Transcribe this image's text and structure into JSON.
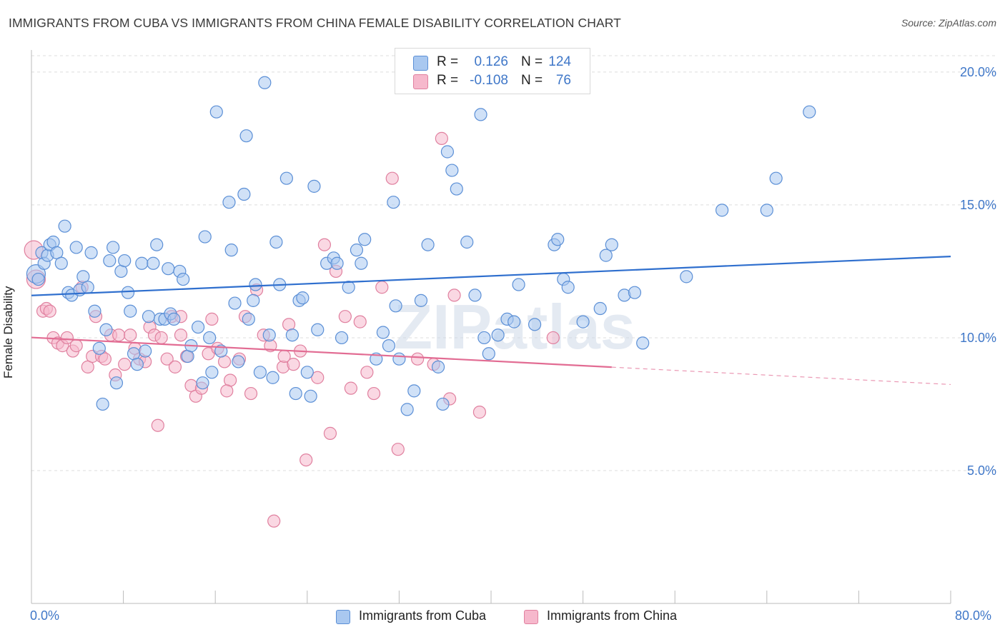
{
  "title": "IMMIGRANTS FROM CUBA VS IMMIGRANTS FROM CHINA FEMALE DISABILITY CORRELATION CHART",
  "source": "Source: ZipAtlas.com",
  "legend_top": {
    "cuba": {
      "r_label": "R =",
      "r_value": "0.126",
      "n_label": "N =",
      "n_value": "124"
    },
    "china": {
      "r_label": "R =",
      "r_value": "-0.108",
      "n_label": "N =",
      "n_value": "76"
    }
  },
  "legend_bottom": {
    "cuba_label": "Immigrants from Cuba",
    "china_label": "Immigrants from China"
  },
  "colors": {
    "cuba_fill": "#a9c8f0",
    "cuba_stroke": "#5b8fd6",
    "cuba_line": "#2f6fce",
    "china_fill": "#f6b8cc",
    "china_stroke": "#e0809f",
    "china_line": "#e26c93",
    "axis_text": "#3f77c8",
    "grid": "#dddddd"
  },
  "chart_data": {
    "type": "scatter",
    "title": "IMMIGRANTS FROM CUBA VS IMMIGRANTS FROM CHINA FEMALE DISABILITY CORRELATION CHART",
    "xlabel": "",
    "ylabel": "Female Disability",
    "xlim": [
      0,
      80
    ],
    "ylim": [
      0,
      20.83
    ],
    "x_tick_labels": [
      "0.0%",
      "80.0%"
    ],
    "y_ticks": [
      5,
      10,
      15,
      20
    ],
    "y_tick_labels": [
      "5.0%",
      "10.0%",
      "15.0%",
      "20.0%"
    ],
    "grid": true,
    "watermark": "ZIPatlas",
    "series": [
      {
        "name": "Immigrants from Cuba",
        "r": 0.126,
        "n": 124,
        "trend": {
          "x0": 0.0,
          "y0": 11.59,
          "x1": 80.0,
          "y1": 13.06,
          "solid_to": 80.0
        },
        "points": [
          [
            0.4,
            12.4
          ],
          [
            0.6,
            12.2
          ],
          [
            0.9,
            13.2
          ],
          [
            1.1,
            12.8
          ],
          [
            1.4,
            13.1
          ],
          [
            1.6,
            13.5
          ],
          [
            1.9,
            13.6
          ],
          [
            2.2,
            13.2
          ],
          [
            2.6,
            12.8
          ],
          [
            2.9,
            14.2
          ],
          [
            3.2,
            11.7
          ],
          [
            3.5,
            11.6
          ],
          [
            3.9,
            13.4
          ],
          [
            4.2,
            11.8
          ],
          [
            4.5,
            12.3
          ],
          [
            4.9,
            11.9
          ],
          [
            5.2,
            13.2
          ],
          [
            5.5,
            11.0
          ],
          [
            5.9,
            9.6
          ],
          [
            6.2,
            7.5
          ],
          [
            6.5,
            10.3
          ],
          [
            6.8,
            12.9
          ],
          [
            7.1,
            13.4
          ],
          [
            7.4,
            8.3
          ],
          [
            7.8,
            12.5
          ],
          [
            8.1,
            12.9
          ],
          [
            8.4,
            11.7
          ],
          [
            8.6,
            11.0
          ],
          [
            8.9,
            9.4
          ],
          [
            9.2,
            9.0
          ],
          [
            9.6,
            12.8
          ],
          [
            9.9,
            9.5
          ],
          [
            10.2,
            10.8
          ],
          [
            10.6,
            12.8
          ],
          [
            10.9,
            13.5
          ],
          [
            11.2,
            10.7
          ],
          [
            11.6,
            10.7
          ],
          [
            11.9,
            12.6
          ],
          [
            12.1,
            10.9
          ],
          [
            12.4,
            10.7
          ],
          [
            12.9,
            12.5
          ],
          [
            13.2,
            12.2
          ],
          [
            13.6,
            9.3
          ],
          [
            13.9,
            9.7
          ],
          [
            14.5,
            10.4
          ],
          [
            14.9,
            8.3
          ],
          [
            15.1,
            13.8
          ],
          [
            15.5,
            10.0
          ],
          [
            15.7,
            8.7
          ],
          [
            16.1,
            18.5
          ],
          [
            16.5,
            9.5
          ],
          [
            17.2,
            15.1
          ],
          [
            17.4,
            13.3
          ],
          [
            17.7,
            11.3
          ],
          [
            18.0,
            9.1
          ],
          [
            18.5,
            15.4
          ],
          [
            18.7,
            17.6
          ],
          [
            18.9,
            10.7
          ],
          [
            19.3,
            11.4
          ],
          [
            19.5,
            12.0
          ],
          [
            19.9,
            8.7
          ],
          [
            20.3,
            19.6
          ],
          [
            20.7,
            10.1
          ],
          [
            21.0,
            8.5
          ],
          [
            21.3,
            13.6
          ],
          [
            21.6,
            12.0
          ],
          [
            22.2,
            16.0
          ],
          [
            22.7,
            10.1
          ],
          [
            23.0,
            7.9
          ],
          [
            23.3,
            11.4
          ],
          [
            23.6,
            11.5
          ],
          [
            24.0,
            8.7
          ],
          [
            24.3,
            7.8
          ],
          [
            24.6,
            15.7
          ],
          [
            24.9,
            10.3
          ],
          [
            25.7,
            12.8
          ],
          [
            26.3,
            13.0
          ],
          [
            26.6,
            12.8
          ],
          [
            27.0,
            10.0
          ],
          [
            27.6,
            11.9
          ],
          [
            28.3,
            13.3
          ],
          [
            28.7,
            12.8
          ],
          [
            29.0,
            13.7
          ],
          [
            30.0,
            9.2
          ],
          [
            30.6,
            10.2
          ],
          [
            31.1,
            9.7
          ],
          [
            31.7,
            11.2
          ],
          [
            31.5,
            15.1
          ],
          [
            32.0,
            9.2
          ],
          [
            32.7,
            7.3
          ],
          [
            33.3,
            8.0
          ],
          [
            33.9,
            11.4
          ],
          [
            34.5,
            13.5
          ],
          [
            35.4,
            8.9
          ],
          [
            35.8,
            7.5
          ],
          [
            36.2,
            17.0
          ],
          [
            36.6,
            16.3
          ],
          [
            37.0,
            15.6
          ],
          [
            37.9,
            13.6
          ],
          [
            38.6,
            11.6
          ],
          [
            39.1,
            18.4
          ],
          [
            39.4,
            10.0
          ],
          [
            39.8,
            9.4
          ],
          [
            40.6,
            10.1
          ],
          [
            41.4,
            10.7
          ],
          [
            42.0,
            10.6
          ],
          [
            42.4,
            12.0
          ],
          [
            43.8,
            10.5
          ],
          [
            45.5,
            13.5
          ],
          [
            45.8,
            13.7
          ],
          [
            46.3,
            12.2
          ],
          [
            46.7,
            11.9
          ],
          [
            48.0,
            10.6
          ],
          [
            49.5,
            11.1
          ],
          [
            50.0,
            13.1
          ],
          [
            50.5,
            13.5
          ],
          [
            51.6,
            11.6
          ],
          [
            52.5,
            11.7
          ],
          [
            53.2,
            9.8
          ],
          [
            57.0,
            12.3
          ],
          [
            60.1,
            14.8
          ],
          [
            64.0,
            14.8
          ],
          [
            64.8,
            16.0
          ],
          [
            67.7,
            18.5
          ]
        ]
      },
      {
        "name": "Immigrants from China",
        "r": -0.108,
        "n": 76,
        "trend": {
          "x0": 0.0,
          "y0": 10.01,
          "x1": 80.0,
          "y1": 8.24,
          "solid_to": 50.5
        },
        "points": [
          [
            0.2,
            13.3
          ],
          [
            0.4,
            12.2
          ],
          [
            1.0,
            11.0
          ],
          [
            1.3,
            11.1
          ],
          [
            1.6,
            11.0
          ],
          [
            1.9,
            10.0
          ],
          [
            2.3,
            9.8
          ],
          [
            2.7,
            9.7
          ],
          [
            3.1,
            10.0
          ],
          [
            3.6,
            9.5
          ],
          [
            3.9,
            9.7
          ],
          [
            4.4,
            11.9
          ],
          [
            4.9,
            8.9
          ],
          [
            5.3,
            9.3
          ],
          [
            5.6,
            10.8
          ],
          [
            6.1,
            9.3
          ],
          [
            6.4,
            9.2
          ],
          [
            6.9,
            10.1
          ],
          [
            7.3,
            8.6
          ],
          [
            7.6,
            10.1
          ],
          [
            8.1,
            9.0
          ],
          [
            8.6,
            10.1
          ],
          [
            9.0,
            9.6
          ],
          [
            9.4,
            9.2
          ],
          [
            9.9,
            9.1
          ],
          [
            10.3,
            10.4
          ],
          [
            10.7,
            10.1
          ],
          [
            11.0,
            6.7
          ],
          [
            11.3,
            10.0
          ],
          [
            11.8,
            9.2
          ],
          [
            12.2,
            10.8
          ],
          [
            12.5,
            8.9
          ],
          [
            13.0,
            10.8
          ],
          [
            13.5,
            9.3
          ],
          [
            13.9,
            8.2
          ],
          [
            14.3,
            7.8
          ],
          [
            14.8,
            8.1
          ],
          [
            15.4,
            9.4
          ],
          [
            15.7,
            10.7
          ],
          [
            16.2,
            9.6
          ],
          [
            16.8,
            9.1
          ],
          [
            17.3,
            8.4
          ],
          [
            18.1,
            9.2
          ],
          [
            18.6,
            10.8
          ],
          [
            19.1,
            7.9
          ],
          [
            19.6,
            11.8
          ],
          [
            20.2,
            10.1
          ],
          [
            20.8,
            9.7
          ],
          [
            21.1,
            3.1
          ],
          [
            21.9,
            8.9
          ],
          [
            22.4,
            10.5
          ],
          [
            22.8,
            9.0
          ],
          [
            23.4,
            9.5
          ],
          [
            23.9,
            5.4
          ],
          [
            24.9,
            8.5
          ],
          [
            25.5,
            13.5
          ],
          [
            26.0,
            6.4
          ],
          [
            26.5,
            12.5
          ],
          [
            27.3,
            10.8
          ],
          [
            27.8,
            8.1
          ],
          [
            28.6,
            10.6
          ],
          [
            29.2,
            8.7
          ],
          [
            29.8,
            7.9
          ],
          [
            30.5,
            11.9
          ],
          [
            31.4,
            16.0
          ],
          [
            31.9,
            5.8
          ],
          [
            33.6,
            9.2
          ],
          [
            35.0,
            9.0
          ],
          [
            35.7,
            17.5
          ],
          [
            36.4,
            7.7
          ],
          [
            36.8,
            11.6
          ],
          [
            39.0,
            7.2
          ],
          [
            45.4,
            10.0
          ],
          [
            22.0,
            9.3
          ],
          [
            17.0,
            8.0
          ],
          [
            13.0,
            10.1
          ]
        ]
      }
    ]
  }
}
